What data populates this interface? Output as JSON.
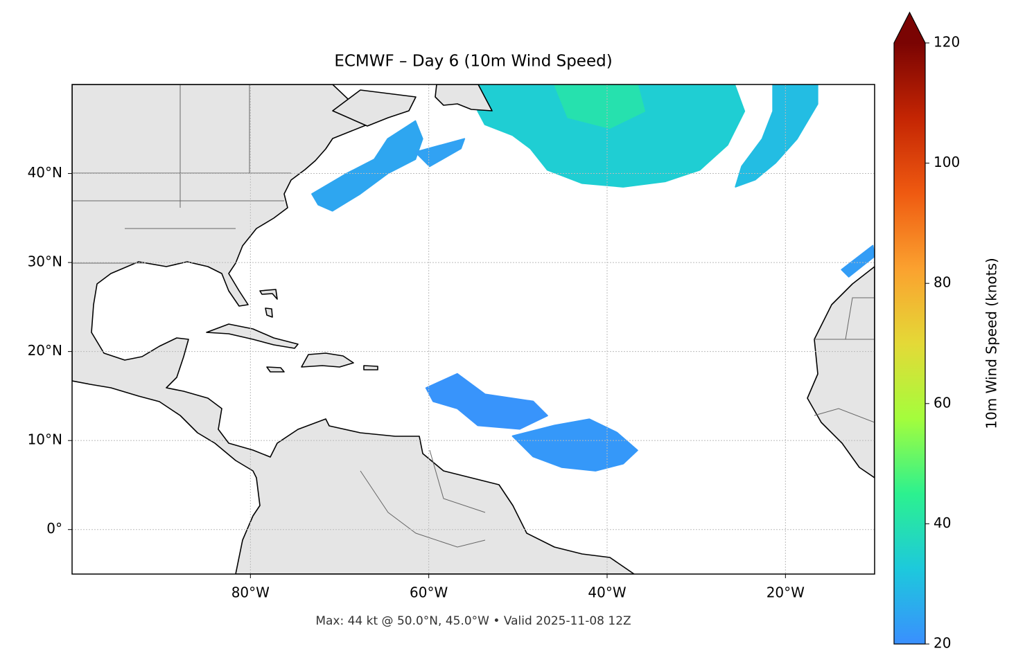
{
  "chart_data": {
    "type": "map",
    "title": "ECMWF – Day 6 (10m Wind Speed)",
    "footer": "Max: 44 kt @ 50.0°N, 45.0°W • Valid 2025-11-08 12Z",
    "xlim": [
      -100,
      -10
    ],
    "ylim": [
      -5,
      50
    ],
    "xticks": [
      {
        "value": -80,
        "label": "80°W"
      },
      {
        "value": -60,
        "label": "60°W"
      },
      {
        "value": -40,
        "label": "40°W"
      },
      {
        "value": -20,
        "label": "20°W"
      }
    ],
    "yticks": [
      {
        "value": 0,
        "label": "0°"
      },
      {
        "value": 10,
        "label": "10°N"
      },
      {
        "value": 20,
        "label": "20°N"
      },
      {
        "value": 30,
        "label": "30°N"
      },
      {
        "value": 40,
        "label": "40°N"
      }
    ],
    "grid": true,
    "colorbar": {
      "label": "10m Wind Speed (knots)",
      "lim": [
        20,
        120
      ],
      "ticks": [
        20,
        40,
        60,
        80,
        100,
        120
      ],
      "extend": "max",
      "colormap": [
        "#3a8ffe",
        "#1dc9dc",
        "#2cf18f",
        "#a4fd3c",
        "#e4d937",
        "#fba12f",
        "#ef5a11",
        "#c42503",
        "#7a0403"
      ]
    },
    "wind_areas": [
      {
        "speed": 34,
        "polygon": [
          [
            -55.2,
            50
          ],
          [
            -25.7,
            50
          ],
          [
            -24.6,
            47.0
          ],
          [
            -26.5,
            43.2
          ],
          [
            -29.6,
            40.4
          ],
          [
            -33.5,
            39.1
          ],
          [
            -38.2,
            38.5
          ],
          [
            -42.8,
            38.9
          ],
          [
            -46.7,
            40.4
          ],
          [
            -48.6,
            42.8
          ],
          [
            -50.6,
            44.3
          ],
          [
            -53.7,
            45.5
          ],
          [
            -54.5,
            47.0
          ]
        ]
      },
      {
        "speed": 40,
        "polygon": [
          [
            -45.9,
            50
          ],
          [
            -36.6,
            50
          ],
          [
            -35.8,
            47.0
          ],
          [
            -39.7,
            45.1
          ],
          [
            -44.4,
            46.3
          ]
        ]
      },
      {
        "speed": 30,
        "polygon": [
          [
            -21.4,
            50
          ],
          [
            -16.4,
            50
          ],
          [
            -16.4,
            47.8
          ],
          [
            -18.7,
            43.9
          ],
          [
            -21.1,
            41.2
          ],
          [
            -23.4,
            39.3
          ],
          [
            -25.6,
            38.5
          ],
          [
            -24.9,
            40.8
          ],
          [
            -22.6,
            43.9
          ],
          [
            -21.4,
            47.0
          ]
        ]
      },
      {
        "speed": 25,
        "polygon": [
          [
            -73.1,
            37.7
          ],
          [
            -69.2,
            40
          ],
          [
            -66.1,
            41.6
          ],
          [
            -64.6,
            43.9
          ],
          [
            -61.5,
            45.9
          ],
          [
            -60.7,
            43.9
          ],
          [
            -61.5,
            41.6
          ],
          [
            -64.6,
            40
          ],
          [
            -67.7,
            37.7
          ],
          [
            -70.8,
            35.8
          ],
          [
            -72.4,
            36.5
          ]
        ]
      },
      {
        "speed": 24,
        "polygon": [
          [
            -61.5,
            42.4
          ],
          [
            -56,
            43.9
          ],
          [
            -56.4,
            42.8
          ],
          [
            -59.9,
            40.8
          ]
        ]
      },
      {
        "speed": 22,
        "polygon": [
          [
            -50.6,
            10.5
          ],
          [
            -45.9,
            11.7
          ],
          [
            -42.0,
            12.4
          ],
          [
            -38.9,
            10.9
          ],
          [
            -36.6,
            8.9
          ],
          [
            -38.2,
            7.4
          ],
          [
            -41.3,
            6.6
          ],
          [
            -45.1,
            7.0
          ],
          [
            -48.3,
            8.2
          ]
        ]
      },
      {
        "speed": 21,
        "polygon": [
          [
            -60.3,
            15.9
          ],
          [
            -56.8,
            17.5
          ],
          [
            -53.7,
            15.2
          ],
          [
            -48.3,
            14.4
          ],
          [
            -46.7,
            12.8
          ],
          [
            -49.8,
            11.3
          ],
          [
            -54.5,
            11.7
          ],
          [
            -56.8,
            13.6
          ],
          [
            -59.5,
            14.4
          ]
        ]
      },
      {
        "speed": 23,
        "polygon": [
          [
            -13.7,
            29.2
          ],
          [
            -10.2,
            31.9
          ],
          [
            -10,
            30.7
          ],
          [
            -12.9,
            28.4
          ]
        ]
      }
    ]
  }
}
